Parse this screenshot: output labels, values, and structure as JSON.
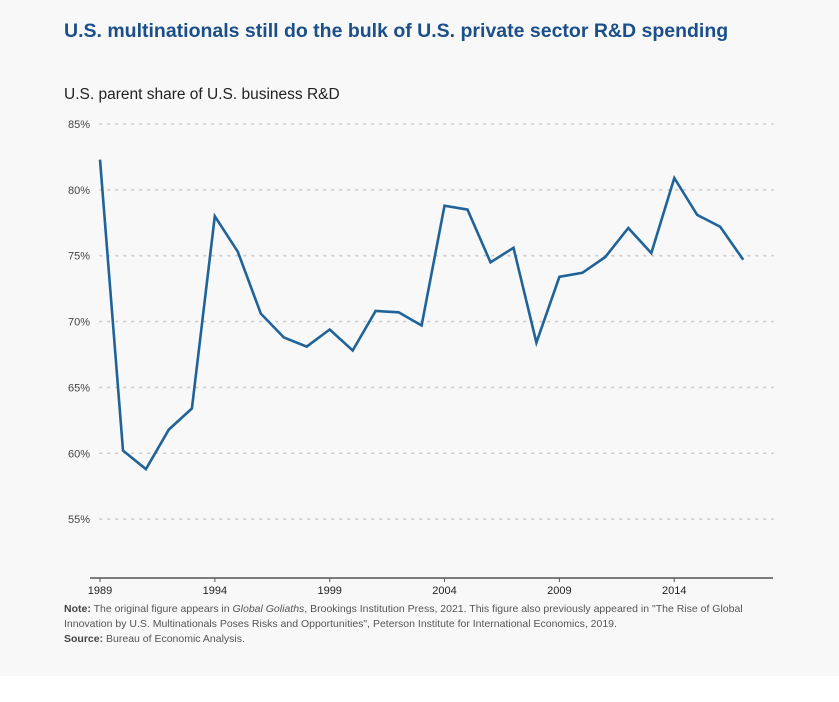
{
  "title": "U.S. multinationals still do the bulk of U.S. private sector R&D spending",
  "subtitle": "U.S. parent share of U.S. business R&D",
  "colors": {
    "title": "#1b4f8a",
    "line": "#1f6399",
    "grid": "#c8c8c8",
    "axis": "#555555"
  },
  "note": {
    "label": "Note:",
    "text_before_italic": " The original figure appears in ",
    "italic": "Global Goliaths",
    "text_after_italic": ", Brookings Institution Press, 2021. This figure also previously appeared in \"The Rise of Global Innovation by U.S. Multinationals Poses Risks and Opportunities\", Peterson Institute for International Economics, 2019."
  },
  "source": {
    "label": "Source:",
    "text": " Bureau of Economic Analysis."
  },
  "chart_data": {
    "type": "line",
    "title": "U.S. multinationals still do the bulk of U.S. private sector R&D spending",
    "subtitle": "U.S. parent share of U.S. business R&D",
    "xlabel": "",
    "ylabel": "",
    "x": [
      1989,
      1990,
      1991,
      1992,
      1993,
      1994,
      1995,
      1996,
      1997,
      1998,
      1999,
      2000,
      2001,
      2002,
      2003,
      2004,
      2005,
      2006,
      2007,
      2008,
      2009,
      2010,
      2011,
      2012,
      2013,
      2014,
      2015,
      2016,
      2017
    ],
    "series": [
      {
        "name": "U.S. parent share of U.S. business R&D",
        "values": [
          82.3,
          60.2,
          58.8,
          61.8,
          63.4,
          78.0,
          75.3,
          70.6,
          68.8,
          68.1,
          69.4,
          67.8,
          70.8,
          70.7,
          69.7,
          78.8,
          78.5,
          74.5,
          75.6,
          68.4,
          73.4,
          73.7,
          74.9,
          77.1,
          75.2,
          80.9,
          78.1,
          77.2,
          74.7
        ]
      }
    ],
    "xlim": [
      1989,
      2018
    ],
    "ylim": [
      50,
      85
    ],
    "xticks": [
      1989,
      1994,
      1999,
      2004,
      2009,
      2014
    ],
    "xtick_labels": [
      "1989",
      "1994",
      "1999",
      "2004",
      "2009",
      "2014"
    ],
    "yticks": [
      55,
      60,
      65,
      70,
      75,
      80,
      85
    ],
    "ytick_labels": [
      "55%",
      "60%",
      "65%",
      "70%",
      "75%",
      "80%",
      "85%"
    ],
    "grid": "horizontal-dotted",
    "legend": "none"
  }
}
